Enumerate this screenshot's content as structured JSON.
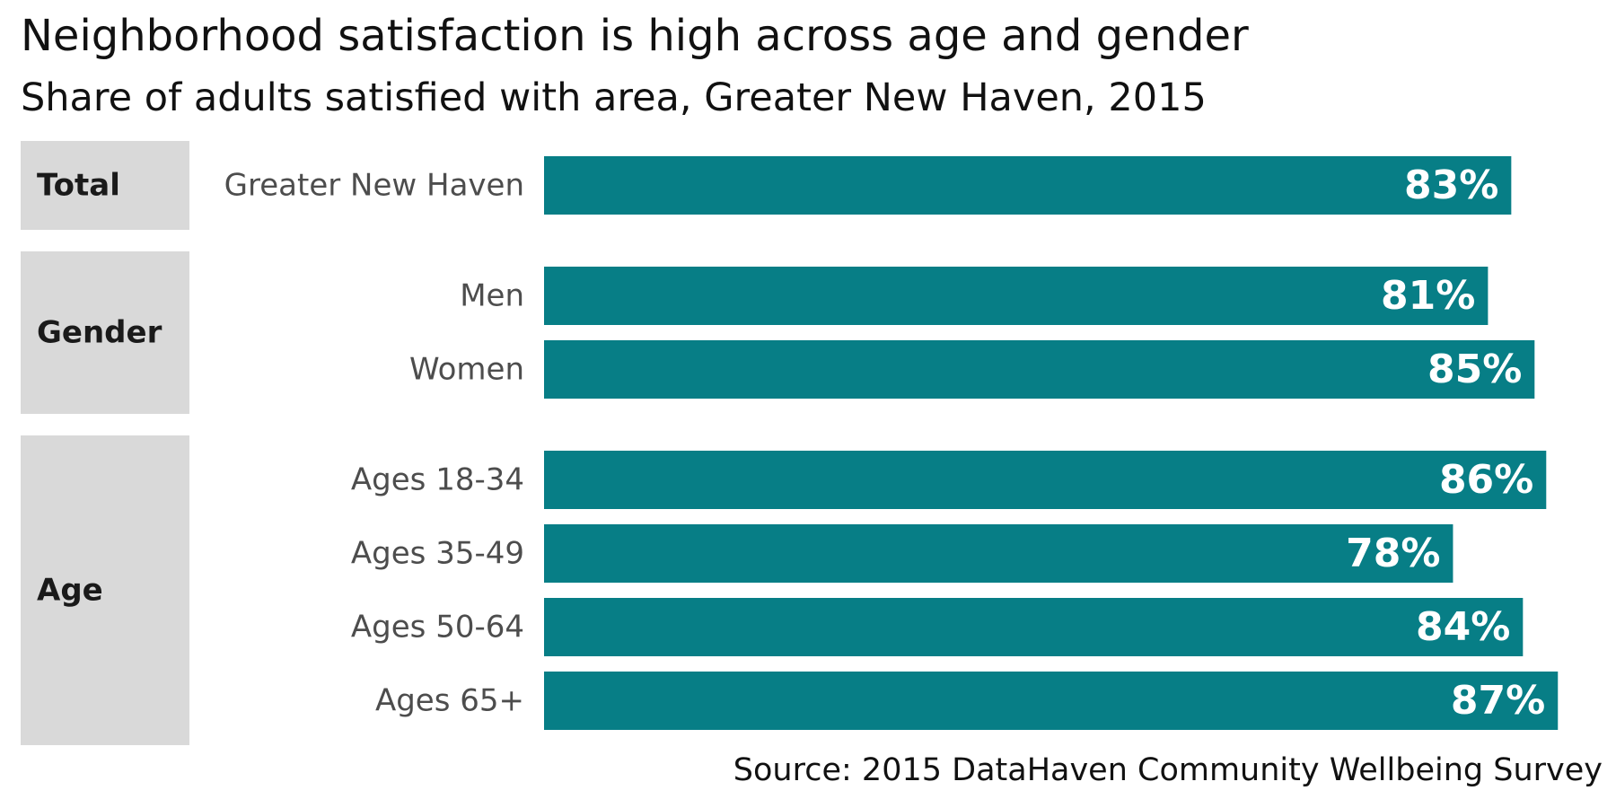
{
  "chart_data": {
    "type": "bar",
    "orientation": "horizontal",
    "title": "Neighborhood satisfaction is high across age and gender",
    "subtitle": "Share of adults satisfied with area, Greater New Haven, 2015",
    "source": "Source: 2015 DataHaven Community Wellbeing Survey",
    "xlim": [
      0,
      1
    ],
    "grid": false,
    "bar_color": "#077E86",
    "group_fill": "#D9D9D9",
    "groups": [
      {
        "name": "Total",
        "categories": [
          "Greater New Haven"
        ],
        "values": [
          0.83
        ],
        "labels": [
          "83%"
        ]
      },
      {
        "name": "Gender",
        "categories": [
          "Men",
          "Women"
        ],
        "values": [
          0.81,
          0.85
        ],
        "labels": [
          "81%",
          "85%"
        ]
      },
      {
        "name": "Age",
        "categories": [
          "Ages 18-34",
          "Ages 35-49",
          "Ages 50-64",
          "Ages 65+"
        ],
        "values": [
          0.86,
          0.78,
          0.84,
          0.87
        ],
        "labels": [
          "86%",
          "78%",
          "84%",
          "87%"
        ]
      }
    ]
  }
}
